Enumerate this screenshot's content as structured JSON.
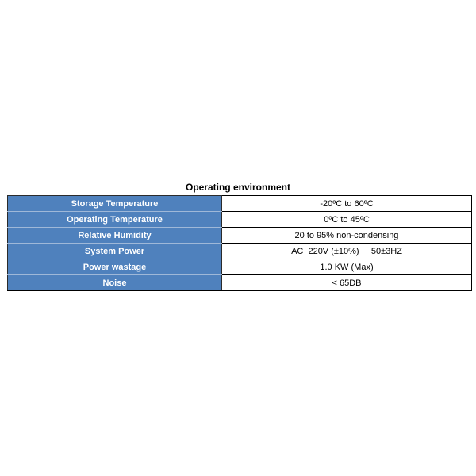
{
  "title": "Operating environment",
  "rows": [
    {
      "label": "Storage Temperature",
      "value": "-20ºC to 60ºC"
    },
    {
      "label": "Operating Temperature",
      "value": "0ºC to 45ºC"
    },
    {
      "label": "Relative Humidity",
      "value": "20 to 95% non-condensing"
    },
    {
      "label": "System Power",
      "value": "AC  220V (±10%)     50±3HZ"
    },
    {
      "label": "Power wastage",
      "value": "1.0 KW (Max)"
    },
    {
      "label": "Noise",
      "value": "< 65DB"
    }
  ],
  "colors": {
    "header_cell": "#4f81bd"
  }
}
